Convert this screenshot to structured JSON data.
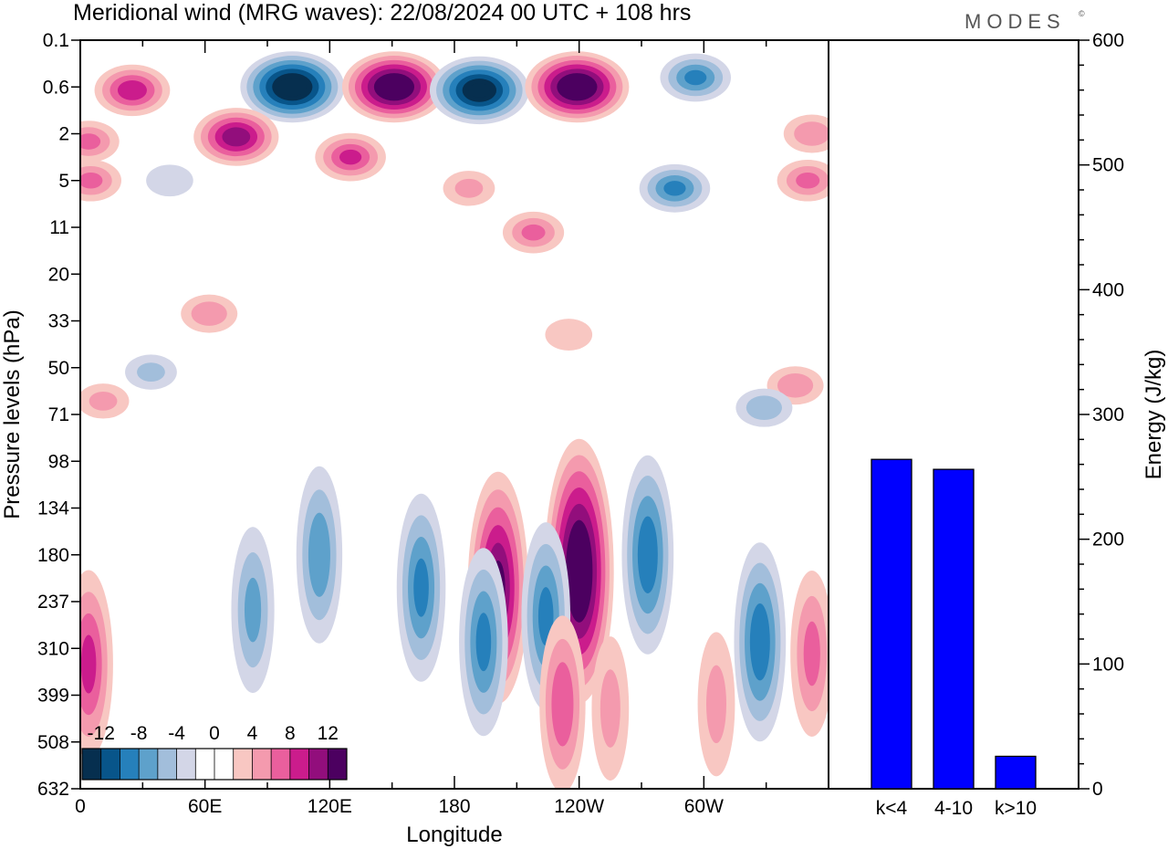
{
  "header": {
    "title": "Meridional wind (MRG waves):  22/08/2024  00 UTC  + 108 hrs",
    "logo": "MODES",
    "logo_mark": "©"
  },
  "colors": {
    "neg": [
      "#062f4f",
      "#08558a",
      "#2680bb",
      "#5ea1cb",
      "#a2bedb",
      "#d3d6e7"
    ],
    "pos": [
      "#f8c7c2",
      "#f49aae",
      "#ea5f9d",
      "#cb1c8c",
      "#920e7c",
      "#4c0060"
    ],
    "bar": "#0000ff"
  },
  "chart_data": [
    {
      "type": "heatmap",
      "variable": "Meridional wind (MRG waves)",
      "xlabel": "Longitude",
      "ylabel": "Pressure levels (hPa)",
      "x_ticks": [
        "0",
        "60E",
        "120E",
        "180",
        "120W",
        "60W"
      ],
      "y_ticks": [
        "0.1",
        "0.6",
        "2",
        "5",
        "11",
        "20",
        "33",
        "50",
        "71",
        "98",
        "134",
        "180",
        "237",
        "310",
        "399",
        "508",
        "632"
      ],
      "colorbar": {
        "levels": [
          -14,
          -12,
          -10,
          -8,
          -6,
          -4,
          -2,
          2,
          4,
          6,
          8,
          10,
          12,
          14
        ],
        "labels": [
          "-12",
          "-8",
          "-4",
          "0",
          "4",
          "8",
          "12"
        ]
      },
      "features": [
        {
          "lon": 102,
          "lev": 0.6,
          "v": -15
        },
        {
          "lon": 151,
          "lev": 0.6,
          "v": 15
        },
        {
          "lon": 192,
          "lev": 0.7,
          "v": -14
        },
        {
          "lon": 239,
          "lev": 0.6,
          "v": 15
        },
        {
          "lon": 296,
          "lev": 0.5,
          "v": -8
        },
        {
          "lon": 25,
          "lev": 0.7,
          "v": 9
        },
        {
          "lon": 75,
          "lev": 2.2,
          "v": 11
        },
        {
          "lon": 130,
          "lev": 3.5,
          "v": 8
        },
        {
          "lon": 4,
          "lev": 2.5,
          "v": 6
        },
        {
          "lon": 5,
          "lev": 5.0,
          "v": 6
        },
        {
          "lon": 352,
          "lev": 2.0,
          "v": 5
        },
        {
          "lon": 350,
          "lev": 5.0,
          "v": 6
        },
        {
          "lon": 286,
          "lev": 6.0,
          "v": -8
        },
        {
          "lon": 43,
          "lev": 5.0,
          "v": -3
        },
        {
          "lon": 218,
          "lev": 12.0,
          "v": 6
        },
        {
          "lon": 187,
          "lev": 6.0,
          "v": 4
        },
        {
          "lon": 62,
          "lev": 31.0,
          "v": 5
        },
        {
          "lon": 34,
          "lev": 52.0,
          "v": -4
        },
        {
          "lon": 235,
          "lev": 38.0,
          "v": 3
        },
        {
          "lon": 344,
          "lev": 58.0,
          "v": 5
        },
        {
          "lon": 329,
          "lev": 68.0,
          "v": -5
        },
        {
          "lon": 11,
          "lev": 65.0,
          "v": 4
        },
        {
          "lon": 115,
          "lev": 180.0,
          "v": -7
        },
        {
          "lon": 164,
          "lev": 220.0,
          "v": -8
        },
        {
          "lon": 201,
          "lev": 220.0,
          "v": 12
        },
        {
          "lon": 240,
          "lev": 200.0,
          "v": 15
        },
        {
          "lon": 224,
          "lev": 260.0,
          "v": -8
        },
        {
          "lon": 273,
          "lev": 180.0,
          "v": -9
        },
        {
          "lon": 194,
          "lev": 300.0,
          "v": -8
        },
        {
          "lon": 327,
          "lev": 300.0,
          "v": -9
        },
        {
          "lon": 4,
          "lev": 340.0,
          "v": 8
        },
        {
          "lon": 352,
          "lev": 320.0,
          "v": 6
        },
        {
          "lon": 83,
          "lev": 250.0,
          "v": -6
        },
        {
          "lon": 232,
          "lev": 420.0,
          "v": 7
        },
        {
          "lon": 255,
          "lev": 430.0,
          "v": 4
        },
        {
          "lon": 306,
          "lev": 420.0,
          "v": 4
        }
      ]
    },
    {
      "type": "bar",
      "categories": [
        "k<4",
        "4-10",
        "k>10"
      ],
      "values": [
        264,
        256,
        26
      ],
      "ylabel": "Energy (J/kg)",
      "ylim": [
        0,
        600
      ],
      "y_ticks": [
        "0",
        "100",
        "200",
        "300",
        "400",
        "500",
        "600"
      ]
    }
  ]
}
